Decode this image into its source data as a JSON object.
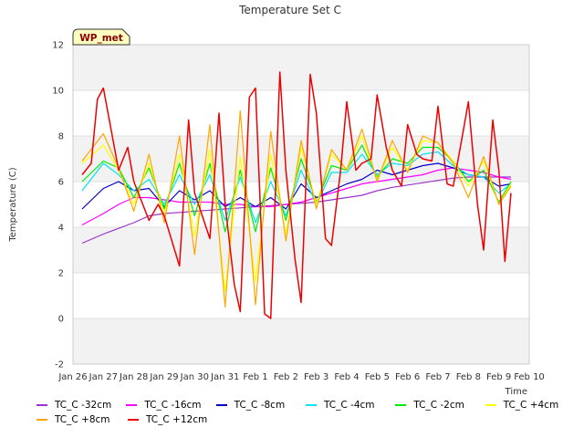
{
  "chart_data": {
    "type": "line",
    "title": "Temperature Set C",
    "xlabel": "Time",
    "ylabel": "Temperature (C)",
    "ylim": [
      -2,
      12
    ],
    "yticks": [
      -2,
      0,
      2,
      4,
      6,
      8,
      10,
      12
    ],
    "xlim": [
      0,
      15
    ],
    "xtick_labels": [
      "Jan 26",
      "Jan 27",
      "Jan 28",
      "Jan 29",
      "Jan 30",
      "Jan 31",
      "Feb 1",
      "Feb 2",
      "Feb 3",
      "Feb 4",
      "Feb 5",
      "Feb 6",
      "Feb 7",
      "Feb 8",
      "Feb 9",
      "Feb 10"
    ],
    "annotation": "WP_met",
    "legend_placement": "bottom",
    "band_shading": true,
    "series": [
      {
        "name": "TC_C -32cm",
        "color": "#9a32cd",
        "x": [
          0.3,
          1,
          2,
          2.5,
          3,
          3.5,
          4,
          4.5,
          5,
          5.5,
          6,
          6.5,
          7,
          7.5,
          8,
          8.5,
          9,
          9.5,
          10,
          10.5,
          11,
          11.5,
          12,
          12.5,
          13,
          13.5,
          14,
          14.4
        ],
        "y": [
          3.3,
          3.7,
          4.2,
          4.5,
          4.6,
          4.65,
          4.7,
          4.75,
          4.8,
          4.85,
          4.9,
          4.95,
          5.0,
          5.05,
          5.1,
          5.2,
          5.3,
          5.4,
          5.6,
          5.75,
          5.85,
          5.95,
          6.05,
          6.15,
          6.2,
          6.2,
          6.2,
          6.2
        ]
      },
      {
        "name": "TC_C -16cm",
        "color": "#ff00ff",
        "x": [
          0.3,
          1,
          1.5,
          2,
          2.5,
          3,
          3.5,
          4,
          4.5,
          5,
          5.5,
          6,
          6.5,
          7,
          7.5,
          8,
          8.5,
          9,
          9.5,
          10,
          10.5,
          11,
          11.5,
          12,
          12.5,
          13,
          13.5,
          14,
          14.4
        ],
        "y": [
          4.1,
          4.6,
          5.0,
          5.3,
          5.3,
          5.2,
          5.1,
          5.1,
          5.1,
          5.0,
          5.0,
          4.9,
          4.9,
          5.0,
          5.1,
          5.3,
          5.5,
          5.7,
          5.9,
          6.0,
          6.1,
          6.2,
          6.3,
          6.5,
          6.6,
          6.5,
          6.4,
          6.2,
          6.1
        ]
      },
      {
        "name": "TC_C -8cm",
        "color": "#0000cd",
        "x": [
          0.3,
          1,
          1.5,
          2,
          2.5,
          3,
          3.5,
          4,
          4.5,
          5,
          5.5,
          6,
          6.5,
          7,
          7.5,
          8,
          8.5,
          9,
          9.5,
          10,
          10.5,
          11,
          11.5,
          12,
          12.5,
          13,
          13.5,
          14,
          14.4
        ],
        "y": [
          4.8,
          5.7,
          6.0,
          5.6,
          5.7,
          4.9,
          5.6,
          5.2,
          5.6,
          4.9,
          5.3,
          4.9,
          5.3,
          4.8,
          5.9,
          5.3,
          5.6,
          5.9,
          6.1,
          6.5,
          6.3,
          6.5,
          6.7,
          6.8,
          6.6,
          6.3,
          6.2,
          5.8,
          5.9
        ]
      },
      {
        "name": "TC_C -4cm",
        "color": "#00e5ee",
        "x": [
          0.3,
          1,
          1.5,
          2,
          2.5,
          3,
          3.5,
          4,
          4.5,
          5,
          5.5,
          6,
          6.5,
          7,
          7.5,
          8,
          8.5,
          9,
          9.5,
          10,
          10.5,
          11,
          11.5,
          12,
          12.5,
          13,
          13.5,
          14,
          14.4
        ],
        "y": [
          5.6,
          6.8,
          6.3,
          5.6,
          6.1,
          5.0,
          6.3,
          5.0,
          6.3,
          4.3,
          6.2,
          4.2,
          6.0,
          4.5,
          6.5,
          5.0,
          6.4,
          6.4,
          7.2,
          6.3,
          6.8,
          6.7,
          7.2,
          7.3,
          6.7,
          6.3,
          6.2,
          5.5,
          5.9
        ]
      },
      {
        "name": "TC_C -2cm",
        "color": "#00ee00",
        "x": [
          0.3,
          1,
          1.5,
          2,
          2.5,
          3,
          3.5,
          4,
          4.5,
          5,
          5.5,
          6,
          6.5,
          7,
          7.5,
          8,
          8.5,
          9,
          9.5,
          10,
          10.5,
          11,
          11.5,
          12,
          12.5,
          13,
          13.5,
          14,
          14.4
        ],
        "y": [
          6.0,
          6.9,
          6.6,
          5.3,
          6.6,
          4.8,
          6.8,
          4.5,
          6.8,
          3.8,
          6.5,
          3.8,
          6.6,
          4.3,
          7.0,
          5.1,
          6.7,
          6.5,
          7.6,
          6.2,
          7.0,
          6.8,
          7.5,
          7.5,
          6.9,
          6.0,
          6.5,
          5.1,
          6.0
        ]
      },
      {
        "name": "TC_C +4cm",
        "color": "#ffff00",
        "x": [
          0.3,
          1,
          1.5,
          2,
          2.5,
          3,
          3.5,
          4,
          4.5,
          5,
          5.5,
          6,
          6.5,
          7,
          7.5,
          8,
          8.5,
          9,
          9.5,
          10,
          10.5,
          11,
          11.5,
          12,
          12.5,
          13,
          13.5,
          14,
          14.4
        ],
        "y": [
          6.8,
          7.6,
          6.5,
          5.0,
          6.8,
          4.6,
          7.2,
          3.6,
          7.4,
          1.2,
          7.1,
          1.6,
          7.2,
          3.7,
          7.5,
          5.0,
          7.2,
          6.5,
          8.0,
          6.1,
          7.5,
          6.5,
          7.8,
          7.7,
          6.9,
          5.8,
          6.9,
          5.0,
          5.9
        ]
      },
      {
        "name": "TC_C +8cm",
        "color": "#ffa500",
        "x": [
          0.3,
          1,
          1.5,
          2,
          2.5,
          3,
          3.5,
          4,
          4.5,
          5,
          5.5,
          6,
          6.5,
          7,
          7.5,
          8,
          8.5,
          9,
          9.5,
          10,
          10.5,
          11,
          11.5,
          12,
          12.5,
          13,
          13.5,
          14,
          14.4
        ],
        "y": [
          6.9,
          8.1,
          6.6,
          4.7,
          7.2,
          4.2,
          8.0,
          2.8,
          8.5,
          0.5,
          9.1,
          0.6,
          8.2,
          3.4,
          7.8,
          4.8,
          7.4,
          6.5,
          8.3,
          6.0,
          7.8,
          6.4,
          8.0,
          7.7,
          6.8,
          5.3,
          7.1,
          5.0,
          5.8
        ]
      },
      {
        "name": "TC_C +12cm",
        "color": "#ee0000",
        "x": [
          0.3,
          0.6,
          0.8,
          1.0,
          1.5,
          1.8,
          2.0,
          2.5,
          2.8,
          3.0,
          3.5,
          3.8,
          4.0,
          4.5,
          4.8,
          5.0,
          5.3,
          5.5,
          5.8,
          6.0,
          6.3,
          6.5,
          6.8,
          7.0,
          7.3,
          7.5,
          7.8,
          8.0,
          8.3,
          8.5,
          8.8,
          9.0,
          9.3,
          9.5,
          9.8,
          10.0,
          10.3,
          10.5,
          10.8,
          11.0,
          11.3,
          11.5,
          11.8,
          12.0,
          12.3,
          12.5,
          12.8,
          13.0,
          13.3,
          13.5,
          13.8,
          14.0,
          14.2,
          14.4
        ],
        "y": [
          6.3,
          6.8,
          9.6,
          10.1,
          6.5,
          7.5,
          6.0,
          4.3,
          5.0,
          4.5,
          2.3,
          8.7,
          5.5,
          3.5,
          9.0,
          5.0,
          1.5,
          0.3,
          9.7,
          10.1,
          0.2,
          0.0,
          10.8,
          6.5,
          2.6,
          0.7,
          10.7,
          9.0,
          3.5,
          3.2,
          6.5,
          9.5,
          6.5,
          6.8,
          7.0,
          9.8,
          7.5,
          6.5,
          5.8,
          8.5,
          7.2,
          7.0,
          6.9,
          9.3,
          5.9,
          5.8,
          8.0,
          9.5,
          5.0,
          3.0,
          8.7,
          6.5,
          2.5,
          5.5
        ]
      }
    ]
  }
}
